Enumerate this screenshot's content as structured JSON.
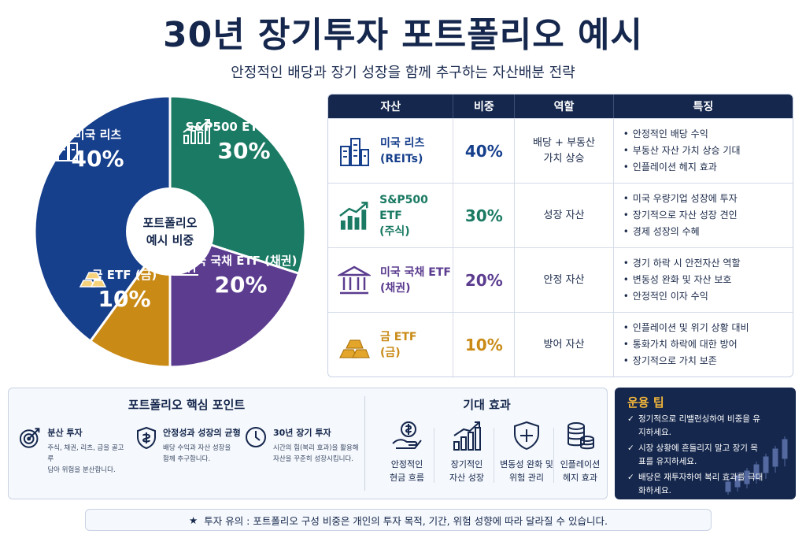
{
  "title": "30년 장기투자 포트폴리오 예시",
  "subtitle": "안정적인 배당과 장기 성장을 함께 추구하는 자산배분 전략",
  "colors": {
    "reits": "#163f8c",
    "sp500": "#1a7a63",
    "bond": "#5b3c8f",
    "gold": "#c98a16",
    "navy": "#15274d"
  },
  "pie": {
    "center_line1": "포트폴리오",
    "center_line2": "예시 비중",
    "segments": [
      {
        "name": "미국 리츠",
        "percent_label": "40%",
        "value": 40,
        "icon": "buildings-icon"
      },
      {
        "name": "S&P500 ETF (주식)",
        "percent_label": "30%",
        "value": 30,
        "icon": "growth-chart-icon"
      },
      {
        "name": "미국 국채 ETF (채권)",
        "percent_label": "20%",
        "value": 20,
        "icon": "bank-icon"
      },
      {
        "name": "금 ETF (금)",
        "percent_label": "10%",
        "value": 10,
        "icon": "gold-bars-icon"
      }
    ]
  },
  "table": {
    "headers": [
      "자산",
      "비중",
      "역할",
      "특징"
    ],
    "rows": [
      {
        "asset_line1": "미국 리츠",
        "asset_line2": "(REITs)",
        "pct": "40%",
        "role_line1": "배당 + 부동산",
        "role_line2": "가치 상승",
        "features": [
          "안정적인 배당 수익",
          "부동산 자산 가치 상승 기대",
          "인플레이션 헤지 효과"
        ]
      },
      {
        "asset_line1": "S&P500 ETF",
        "asset_line2": "(주식)",
        "pct": "30%",
        "role_line1": "성장 자산",
        "role_line2": "",
        "features": [
          "미국 우량기업 성장에 투자",
          "장기적으로 자산 성장 견인",
          "경제 성장의 수혜"
        ]
      },
      {
        "asset_line1": "미국 국채 ETF",
        "asset_line2": "(채권)",
        "pct": "20%",
        "role_line1": "안정 자산",
        "role_line2": "",
        "features": [
          "경기 하락 시 안전자산 역할",
          "변동성 완화 및 자산 보호",
          "안정적인 이자 수익"
        ]
      },
      {
        "asset_line1": "금 ETF",
        "asset_line2": "(금)",
        "pct": "10%",
        "role_line1": "방어 자산",
        "role_line2": "",
        "features": [
          "인플레이션 및 위기 상황 대비",
          "통화가치 하락에 대한 방어",
          "장기적으로 가치 보존"
        ]
      }
    ]
  },
  "core": {
    "title": "포트폴리오 핵심 포인트",
    "points": [
      {
        "title": "분산 투자",
        "desc1": "주식, 채권, 리츠, 금을 골고루",
        "desc2": "담아 위험을 분산합니다."
      },
      {
        "title": "안정성과 성장의 균형",
        "desc1": "배당 수익과 자산 성장을",
        "desc2": "함께 추구합니다."
      },
      {
        "title": "30년 장기 투자",
        "desc1": "시간의 힘(복리 효과)을 활용해",
        "desc2": "자산을 꾸준히 성장시킵니다."
      }
    ]
  },
  "effects": {
    "title": "기대 효과",
    "items": [
      {
        "line1": "안정적인",
        "line2": "현금 흐름"
      },
      {
        "line1": "장기적인",
        "line2": "자산 성장"
      },
      {
        "line1": "변동성 완화 및",
        "line2": "위험 관리"
      },
      {
        "line1": "인플레이션",
        "line2": "헤지 효과"
      }
    ]
  },
  "tips": {
    "title": "운용 팁",
    "items": [
      "정기적으로 리밸런싱하여 비중을 유지하세요.",
      "시장 상황에 흔들리지 말고 장기 목표를 유지하세요.",
      "배당은 재투자하여 복리 효과를 극대화하세요."
    ]
  },
  "note": {
    "star": "★",
    "text": "투자 유의 : 포트폴리오 구성 비중은 개인의 투자 목적, 기간, 위험 성향에 따라 달라질 수 있습니다."
  }
}
